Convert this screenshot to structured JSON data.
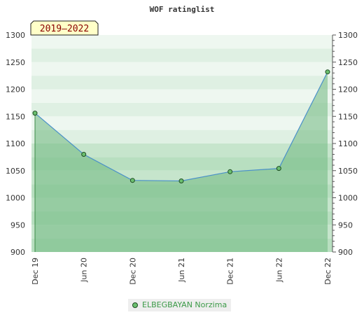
{
  "chart_data": {
    "type": "line",
    "title": "WOF ratinglist",
    "badge": "2019–2022",
    "x": [
      "Dec 19",
      "Jun 20",
      "Dec 20",
      "Jun 21",
      "Dec 21",
      "Jun 22",
      "Dec 22"
    ],
    "series": [
      {
        "name": "ELBEGBAYAN Norzima",
        "values": [
          1156,
          1080,
          1032,
          1031,
          1048,
          1054,
          1232
        ]
      }
    ],
    "ylim": [
      900,
      1300
    ],
    "yticks": [
      900,
      950,
      1000,
      1050,
      1100,
      1150,
      1200,
      1250,
      1300
    ],
    "y_axes": "left and right",
    "legend_position": "bottom",
    "colors": {
      "line": "#4a90c9",
      "marker_fill": "#6bbf6f",
      "area": "#7dbd8a",
      "badge_fill": "#ffffc8",
      "badge_text": "#8b0000"
    }
  }
}
